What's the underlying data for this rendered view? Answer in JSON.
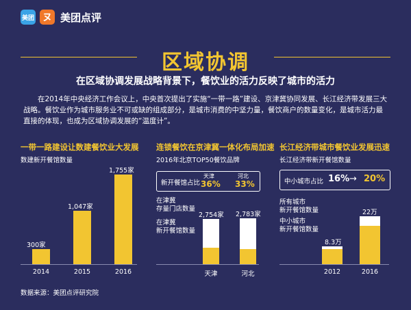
{
  "brand": {
    "icon_text": "美团",
    "icon2_text": "ヌ",
    "name": "美团点评"
  },
  "title": "区域协调",
  "subtitle": "在区域协调发展战略背景下，餐饮业的活力反映了城市的活力",
  "intro": "在2014年中央经济工作会议上，中央首次提出了实施“一带一路”建设、京津冀协同发展、长江经济带发展三大战略。餐饮业作为城市服务业不可或缺的组成部分，是城市消费的中坚力量，餐饮商户的数量变化，是城市活力最直接的体现，也成为区域协调发展的“温度计”。",
  "panel1": {
    "title": "一带一路建设让数建餐饮业大发展",
    "subtitle": "数建新开餐馆数量",
    "chart_data": {
      "type": "bar",
      "categories": [
        "2014",
        "2015",
        "2016"
      ],
      "values": [
        300,
        1047,
        1755
      ],
      "value_labels": [
        "300家",
        "1,047家",
        "1,755家"
      ],
      "ylim": [
        0,
        1800
      ]
    }
  },
  "panel2": {
    "title": "连锁餐饮在京津冀一体化布局加速",
    "subtitle": "2016年北京TOP50餐饮品牌",
    "ratio_label": "新开餐馆占比",
    "ratio_cities": [
      "天津",
      "河北"
    ],
    "ratio_values": [
      "36%",
      "33%"
    ],
    "legend_existing": "在津冀\n存量门店数量",
    "legend_new": "在津冀\n新开餐馆数量",
    "chart_data": {
      "type": "bar",
      "categories": [
        "天津",
        "河北"
      ],
      "total_labels": [
        "2,754家",
        "2,783家"
      ],
      "totals": [
        2754,
        2783
      ],
      "new_share": [
        0.36,
        0.33
      ]
    }
  },
  "panel3": {
    "title": "长江经济带城市餐饮业发展迅速",
    "subtitle": "长江经济带新开餐馆数量",
    "share_label": "中小城市占比",
    "share_from": "16%",
    "share_arrow": "→",
    "share_to": "20%",
    "legend_all": "所有城市\n新开餐馆数量",
    "legend_small": "中小城市\n新开餐馆数量",
    "chart_data": {
      "type": "bar",
      "categories": [
        "2012",
        "2016"
      ],
      "total_labels": [
        "8.3万",
        "22万"
      ],
      "totals": [
        8.3,
        22
      ],
      "small_share": [
        0.16,
        0.2
      ]
    }
  },
  "source": "数据来源：美团点评研究院"
}
